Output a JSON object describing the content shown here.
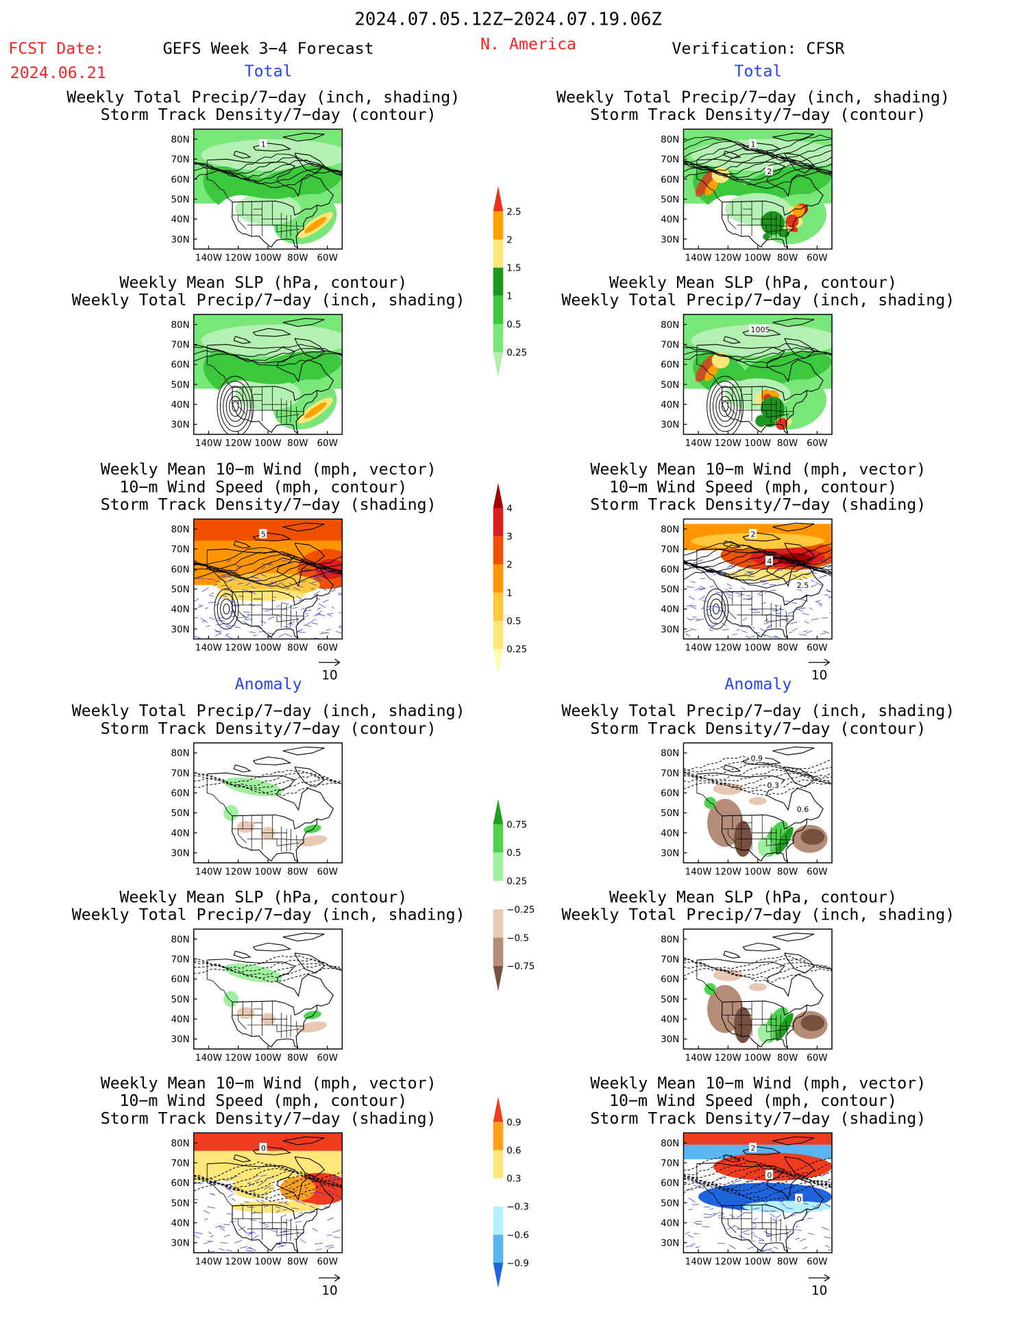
{
  "header": {
    "date_range": "2024.07.05.12Z−2024.07.19.06Z",
    "fcst_date_label": "FCST Date:",
    "fcst_date_value": "2024.06.21",
    "forecast_title": "GEFS Week 3−4 Forecast",
    "region": "N. America",
    "verification": "Verification: CFSR",
    "colors": {
      "red": "#ff2222",
      "blue": "#2244ff"
    }
  },
  "sections": {
    "total_left": "Total",
    "total_right": "Total",
    "anomaly_left": "Anomaly",
    "anomaly_right": "Anomaly"
  },
  "titles": {
    "precip_track": [
      "Weekly Total Precip/7−day (inch, shading)",
      "Storm Track Density/7−day (contour)"
    ],
    "slp_precip": [
      "Weekly Mean SLP (hPa, contour)",
      "Weekly Total Precip/7−day (inch, shading)"
    ],
    "wind_track": [
      "Weekly Mean 10−m Wind (mph, vector)",
      "10−m Wind Speed (mph, contour)",
      "Storm Track Density/7−day (shading)"
    ]
  },
  "axes": {
    "lat_labels": [
      "80N",
      "70N",
      "60N",
      "50N",
      "40N",
      "30N"
    ],
    "lon_labels": [
      "140W",
      "120W",
      "100W",
      "80W",
      "60W"
    ]
  },
  "vector_ref": "10",
  "colorbars": {
    "precip_total": {
      "labels": [
        "2.5",
        "2",
        "1.5",
        "1",
        "0.5",
        "0.25"
      ],
      "colors": [
        "#e8321e",
        "#ffa000",
        "#ffe678",
        "#1e961e",
        "#3cc83c",
        "#78e678",
        "#b4f0b4"
      ]
    },
    "track_total": {
      "labels": [
        "4",
        "3",
        "2",
        "1",
        "0.5",
        "0.25"
      ],
      "colors": [
        "#a00000",
        "#dc1e1e",
        "#f05000",
        "#ff9600",
        "#ffc83c",
        "#ffe678",
        "#fffab4"
      ]
    },
    "precip_anom": {
      "labels": [
        "0.75",
        "0.5",
        "0.25",
        "−0.25",
        "−0.5",
        "−0.75"
      ],
      "colors": [
        "#1ea01e",
        "#50d250",
        "#a0f0a0",
        "#ffffff",
        "#e6c8b4",
        "#b48c78",
        "#785040"
      ]
    },
    "track_anom": {
      "labels": [
        "0.9",
        "0.6",
        "0.3",
        "−0.3",
        "−0.6",
        "−0.9"
      ],
      "colors": [
        "#f03c1e",
        "#ffa01e",
        "#ffe678",
        "#ffffff",
        "#b4f0ff",
        "#5ab4f0",
        "#1e64dc"
      ]
    }
  },
  "maps": [
    {
      "id": "L1",
      "kind": "precip",
      "labels": [
        "1"
      ]
    },
    {
      "id": "R1",
      "kind": "precip_obs",
      "labels": [
        "1",
        "2"
      ]
    },
    {
      "id": "L2",
      "kind": "precip_slp",
      "labels": []
    },
    {
      "id": "R2",
      "kind": "precip_obs_slp",
      "labels": [
        "1005"
      ]
    },
    {
      "id": "L3",
      "kind": "track",
      "labels": [
        "5"
      ]
    },
    {
      "id": "R3",
      "kind": "track_obs",
      "labels": [
        "2",
        "4",
        "2.5"
      ]
    },
    {
      "id": "L4",
      "kind": "anom_precip",
      "labels": []
    },
    {
      "id": "R4",
      "kind": "anom_precip_obs",
      "labels": [
        "0.9",
        "0.3",
        "0.6"
      ]
    },
    {
      "id": "L5",
      "kind": "anom_precip_slp",
      "labels": []
    },
    {
      "id": "R5",
      "kind": "anom_precip_obs_slp",
      "labels": []
    },
    {
      "id": "L6",
      "kind": "anom_track",
      "labels": [
        "0"
      ]
    },
    {
      "id": "R6",
      "kind": "anom_track_obs",
      "labels": [
        "2",
        "0",
        "0"
      ]
    }
  ]
}
